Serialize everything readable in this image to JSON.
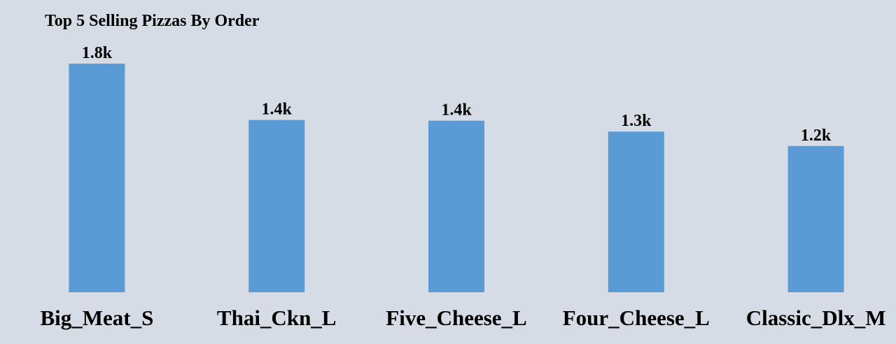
{
  "chart_data": {
    "type": "bar",
    "title": "Top 5 Selling Pizzas By Order",
    "categories": [
      "Big_Meat_S",
      "Thai_Ckn_L",
      "Five_Cheese_L",
      "Four_Cheese_L",
      "Classic_Dlx_M"
    ],
    "values": [
      1811,
      1365,
      1359,
      1273,
      1159
    ],
    "data_labels": [
      "1.8k",
      "1.4k",
      "1.4k",
      "1.3k",
      "1.2k"
    ],
    "xlabel": "",
    "ylabel": "",
    "ylim": [
      0,
      1850
    ],
    "grid": false,
    "legend": "none",
    "bar_color": "#5b9bd5",
    "background_color": "#d6dce5"
  }
}
